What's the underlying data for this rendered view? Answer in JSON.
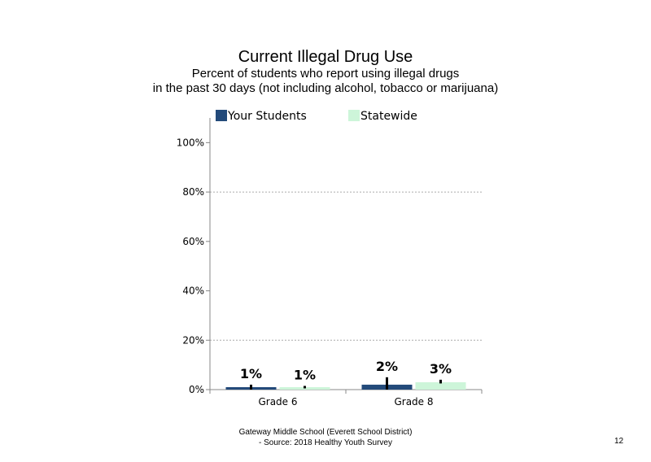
{
  "chart_data": {
    "type": "bar",
    "title": "Current Illegal Drug Use",
    "subtitle_line1": "Percent of students who report using illegal drugs",
    "subtitle_line2": "in the past 30 days (not including alcohol, tobacco or marijuana)",
    "categories": [
      "Grade 6",
      "Grade 8"
    ],
    "series": [
      {
        "name": "Your Students",
        "values": [
          1,
          2
        ],
        "labels": [
          "1%",
          "2%"
        ],
        "color": "#234a7a",
        "error": [
          [
            0,
            2
          ],
          [
            0,
            5
          ]
        ]
      },
      {
        "name": "Statewide",
        "values": [
          1,
          3
        ],
        "labels": [
          "1%",
          "3%"
        ],
        "color": "#cdf5d9",
        "error": [
          [
            0.5,
            1.5
          ],
          [
            2.5,
            4
          ]
        ]
      }
    ],
    "ylim": [
      0,
      110
    ],
    "yticks": [
      0,
      20,
      40,
      60,
      80,
      100
    ],
    "ytick_labels": [
      "0%",
      "20%",
      "40%",
      "60%",
      "80%",
      "100%"
    ],
    "gridlines": [
      20,
      80
    ],
    "legend": "top"
  },
  "footer": {
    "line1": "Gateway Middle School (Everett School District)",
    "line2": "- Source: 2018 Healthy Youth Survey"
  },
  "page_number": "12"
}
